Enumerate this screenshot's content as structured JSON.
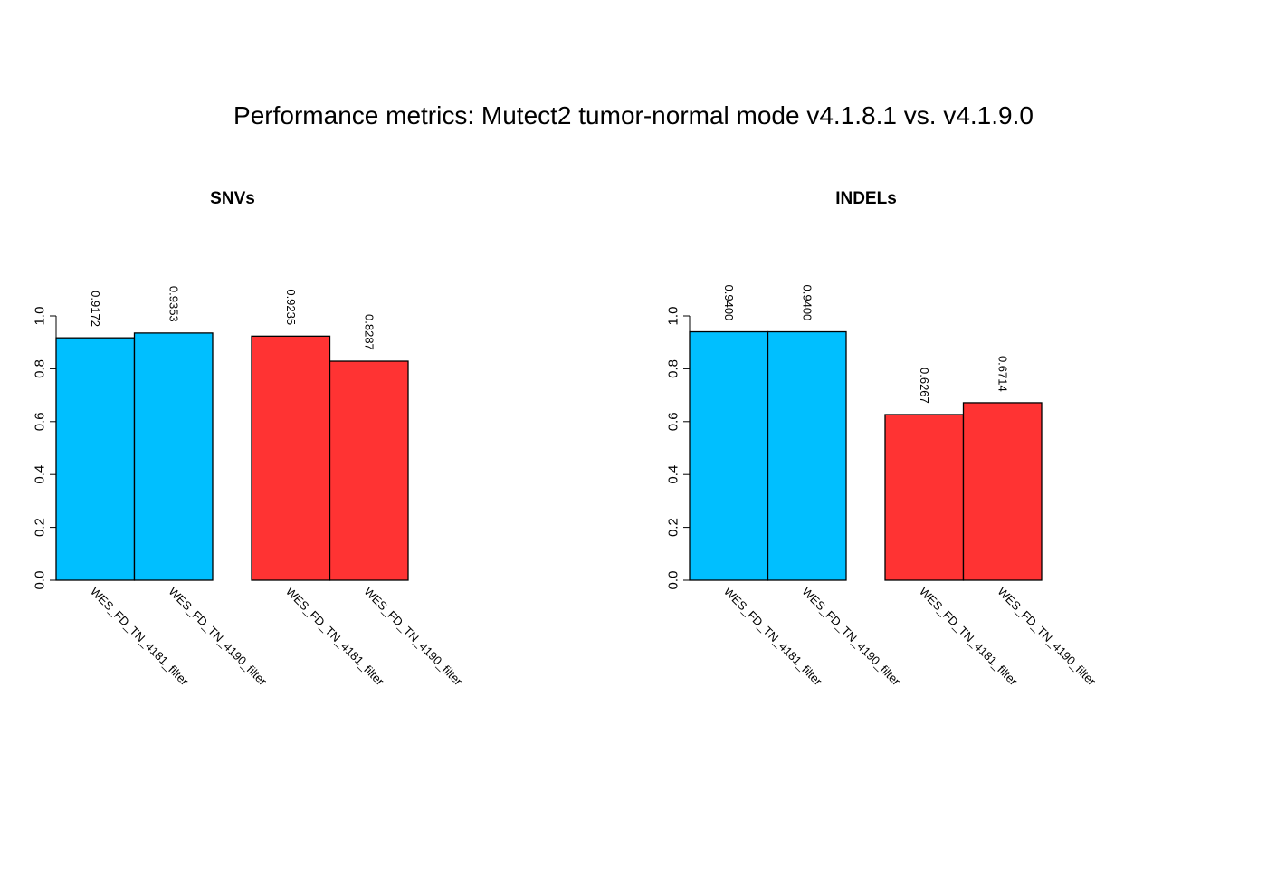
{
  "title": "Performance metrics: Mutect2 tumor-normal mode v4.1.8.1 vs. v4.1.9.0",
  "colors": {
    "blue": "#00BFFF",
    "red": "#FF3333"
  },
  "chart_data": [
    {
      "type": "bar",
      "title": "SNVs",
      "ylim": [
        0,
        1
      ],
      "yticks": [
        "0.0",
        "0.2",
        "0.4",
        "0.6",
        "0.8",
        "1.0"
      ],
      "grid": false,
      "groups": [
        {
          "color": "blue",
          "categories": [
            "WES_FD_TN_4181_filter",
            "WES_FD_TN_4190_filter"
          ],
          "values": [
            0.9172,
            0.9353
          ],
          "labels": [
            "0.9172",
            "0.9353"
          ]
        },
        {
          "color": "red",
          "categories": [
            "WES_FD_TN_4181_filter",
            "WES_FD_TN_4190_filter"
          ],
          "values": [
            0.9235,
            0.8287
          ],
          "labels": [
            "0.9235",
            "0.8287"
          ]
        }
      ]
    },
    {
      "type": "bar",
      "title": "INDELs",
      "ylim": [
        0,
        1
      ],
      "yticks": [
        "0.0",
        "0.2",
        "0.4",
        "0.6",
        "0.8",
        "1.0"
      ],
      "grid": false,
      "groups": [
        {
          "color": "blue",
          "categories": [
            "WES_FD_TN_4181_filter",
            "WES_FD_TN_4190_filter"
          ],
          "values": [
            0.94,
            0.94
          ],
          "labels": [
            "0.9400",
            "0.9400"
          ]
        },
        {
          "color": "red",
          "categories": [
            "WES_FD_TN_4181_filter",
            "WES_FD_TN_4190_filter"
          ],
          "values": [
            0.6267,
            0.6714
          ],
          "labels": [
            "0.6267",
            "0.6714"
          ]
        }
      ]
    }
  ]
}
